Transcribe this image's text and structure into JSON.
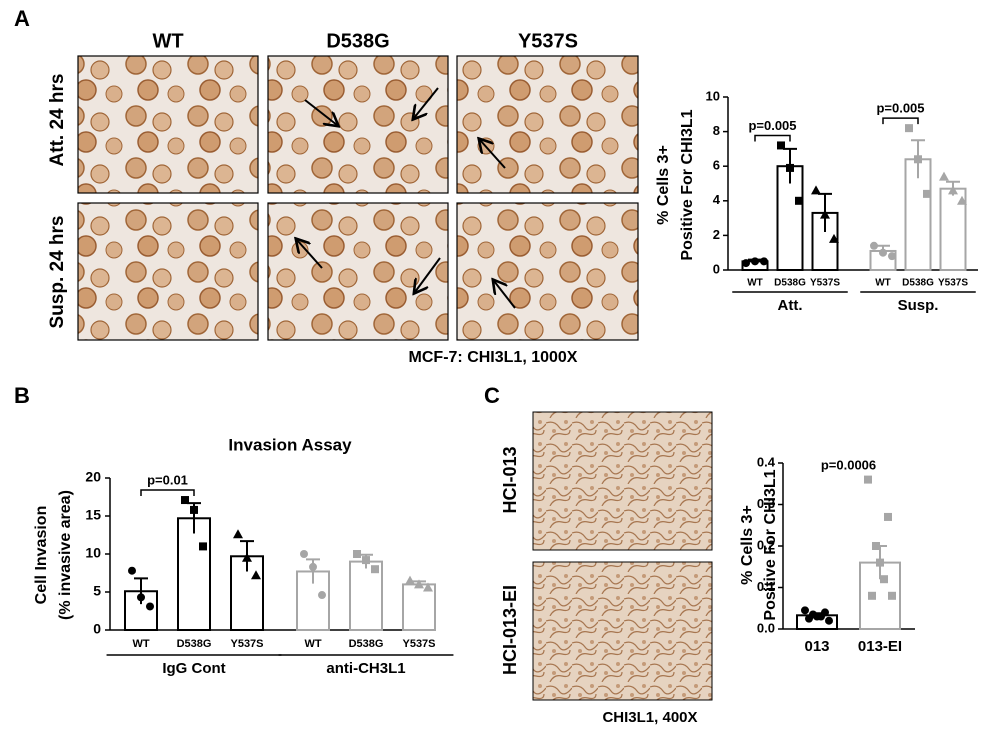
{
  "figure": {
    "panel_labels": [
      "A",
      "B",
      "C"
    ]
  },
  "panel_a": {
    "columns": [
      "WT",
      "D538G",
      "Y537S"
    ],
    "rows": [
      "Att. 24 hrs",
      "Susp. 24 hrs"
    ],
    "caption": "MCF-7: CHI3L1, 1000X"
  },
  "panel_c": {
    "rows": [
      "HCI-013",
      "HCI-013-EI"
    ],
    "caption": "CHI3L1, 400X"
  },
  "chart_data": [
    {
      "type": "bar",
      "ylabel": [
        "% Cells 3+",
        "Positive  For CHI3L1"
      ],
      "categories": [
        "WT",
        "D538G",
        "Y537S"
      ],
      "markers": [
        "circle",
        "square",
        "triangle"
      ],
      "series": [
        {
          "name": "Att.",
          "color": "#000000",
          "values": [
            0.5,
            6.0,
            3.3
          ],
          "errors": [
            0.1,
            1.0,
            1.1
          ],
          "points": [
            [
              0.4,
              0.5,
              0.5
            ],
            [
              7.2,
              5.9,
              4.0
            ],
            [
              4.6,
              3.2,
              1.8
            ]
          ]
        },
        {
          "name": "Susp.",
          "color": "#a6a6a6",
          "values": [
            1.1,
            6.4,
            4.7
          ],
          "errors": [
            0.3,
            1.1,
            0.4
          ],
          "points": [
            [
              1.4,
              1.0,
              0.8
            ],
            [
              8.2,
              6.4,
              4.4
            ],
            [
              5.4,
              4.6,
              4.0
            ]
          ]
        }
      ],
      "ylim": [
        0,
        10
      ],
      "yticks": [
        0,
        2,
        4,
        6,
        8,
        10
      ],
      "annotations": [
        "p=0.005",
        "p=0.005"
      ],
      "brackets": true
    },
    {
      "type": "bar",
      "title": "Invasion  Assay",
      "ylabel": [
        "Cell  Invasion",
        "(% invasive area)"
      ],
      "categories": [
        "WT",
        "D538G",
        "Y537S"
      ],
      "markers": [
        "circle",
        "square",
        "triangle"
      ],
      "series": [
        {
          "name": "IgG  Cont",
          "color": "#000000",
          "values": [
            5.1,
            14.7,
            9.7
          ],
          "errors": [
            1.7,
            2.0,
            2.0
          ],
          "points": [
            [
              7.8,
              4.3,
              3.1
            ],
            [
              17.1,
              15.8,
              11.0
            ],
            [
              12.6,
              9.5,
              7.2
            ]
          ]
        },
        {
          "name": "anti-CH3L1",
          "color": "#a6a6a6",
          "values": [
            7.7,
            9.0,
            6.0
          ],
          "errors": [
            1.6,
            0.9,
            0.4
          ],
          "points": [
            [
              10.0,
              8.3,
              4.6
            ],
            [
              10.0,
              9.2,
              8.0
            ],
            [
              6.5,
              6.0,
              5.6
            ]
          ]
        }
      ],
      "ylim": [
        0,
        20
      ],
      "yticks": [
        0,
        5,
        10,
        15,
        20
      ],
      "annotations": [
        "p=0.01"
      ],
      "brackets": true
    },
    {
      "type": "bar",
      "ylabel": [
        "% Cells 3+",
        "Positive  For CHI3L1"
      ],
      "categories": [
        "013",
        "013-EI"
      ],
      "markers": [
        "circle",
        "square"
      ],
      "series": [
        {
          "colors": [
            "#000000",
            "#a6a6a6"
          ],
          "values": [
            0.033,
            0.16
          ],
          "errors": [
            0.005,
            0.04
          ],
          "points": [
            [
              0.045,
              0.04,
              0.035,
              0.03,
              0.03,
              0.025,
              0.02
            ],
            [
              0.36,
              0.27,
              0.2,
              0.16,
              0.12,
              0.08,
              0.08
            ]
          ]
        }
      ],
      "ylim": [
        0,
        0.4
      ],
      "yticks": [
        {
          "value": 0,
          "label": "0.0"
        },
        0.1,
        0.2,
        0.3,
        0.4
      ],
      "annotations": [
        "p=0.0006"
      ],
      "brackets": false
    }
  ]
}
